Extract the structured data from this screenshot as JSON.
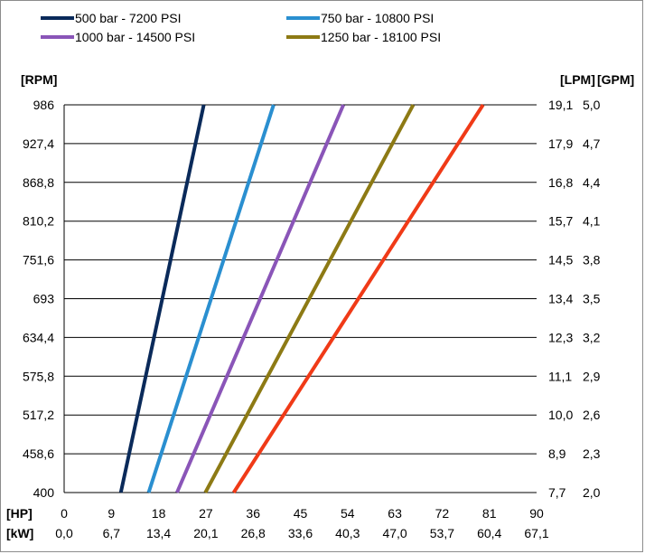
{
  "chart_data": {
    "type": "line",
    "legend": {
      "placement": "top"
    },
    "axes": {
      "left_title": "[RPM]",
      "right_title_lpm": "[LPM]",
      "right_title_gpm": "[GPM]",
      "bottom_title_hp": "[HP]",
      "bottom_title_kw": "[kW]",
      "y_ticks": [
        "986",
        "927,4",
        "868,8",
        "810,2",
        "751,6",
        "693",
        "634,4",
        "575,8",
        "517,2",
        "458,6",
        "400"
      ],
      "lpm_ticks": [
        "19,1",
        "17,9",
        "16,8",
        "15,7",
        "14,5",
        "13,4",
        "12,3",
        "11,1",
        "10,0",
        "8,9",
        "7,7"
      ],
      "gpm_ticks": [
        "5,0",
        "4,7",
        "4,4",
        "4,1",
        "3,8",
        "3,5",
        "3,2",
        "2,9",
        "2,6",
        "2,3",
        "2,0"
      ],
      "hp_ticks": [
        "0",
        "9",
        "18",
        "27",
        "36",
        "45",
        "54",
        "63",
        "72",
        "81",
        "90"
      ],
      "kw_ticks": [
        "0,0",
        "6,7",
        "13,4",
        "20,1",
        "26,8",
        "33,6",
        "40,3",
        "47,0",
        "53,7",
        "60,4",
        "67,1"
      ],
      "xlim": [
        0,
        90
      ],
      "ylim": [
        400,
        986
      ],
      "grid": "horizontal"
    },
    "series": [
      {
        "name": "500 bar - 7200 PSI",
        "color": "#0a2a5a",
        "x": [
          10.8,
          26.6
        ],
        "y": [
          400,
          986
        ]
      },
      {
        "name": "750 bar - 10800 PSI",
        "color": "#2a8fd0",
        "x": [
          16.1,
          39.9
        ],
        "y": [
          400,
          986
        ]
      },
      {
        "name": "1000 bar - 14500 PSI",
        "color": "#8a55b8",
        "x": [
          21.5,
          53.2
        ],
        "y": [
          400,
          986
        ]
      },
      {
        "name": "1250 bar - 18100 PSI",
        "color": "#8d7a14",
        "x": [
          26.9,
          66.5
        ],
        "y": [
          400,
          986
        ]
      },
      {
        "name": "",
        "color": "#f03a17",
        "x": [
          32.3,
          79.8
        ],
        "y": [
          400,
          986
        ]
      }
    ]
  }
}
